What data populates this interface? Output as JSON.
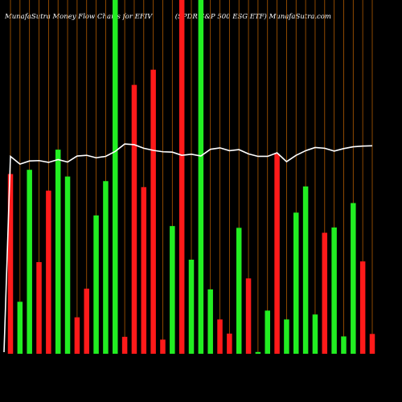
{
  "header": {
    "left": "MunafaSutra  Money Flow  Charts for EFIV",
    "right": "(SPDR S&P 500  ESG ETF) MunafaSutra.com"
  },
  "colors": {
    "background": "#000000",
    "up": "#22ee22",
    "down": "#ff1a1a",
    "grid": "#b05a00",
    "line": "#ffffff"
  },
  "chart_data": {
    "type": "bar",
    "grid": "vertical",
    "ylim": [
      0,
      1000
    ],
    "series": [
      {
        "name": "",
        "values": [
          508,
          147,
          520,
          259,
          461,
          577,
          501,
          103,
          184,
          391,
          488,
          1000,
          48,
          760,
          471,
          803,
          40,
          361,
          1000,
          266,
          1000,
          182,
          97,
          57,
          356,
          213,
          5,
          122,
          565,
          97,
          399,
          473,
          111,
          342,
          357,
          49,
          426,
          261,
          56
        ],
        "direction": [
          "down",
          "up",
          "up",
          "down",
          "down",
          "up",
          "up",
          "down",
          "down",
          "up",
          "up",
          "up",
          "down",
          "down",
          "down",
          "down",
          "down",
          "up",
          "down",
          "up",
          "up",
          "up",
          "down",
          "down",
          "up",
          "down",
          "up",
          "up",
          "down",
          "up",
          "up",
          "up",
          "up",
          "down",
          "up",
          "up",
          "up",
          "down",
          "down"
        ]
      },
      {
        "name": "",
        "type": "line",
        "values": [
          558,
          536,
          545,
          546,
          541,
          549,
          542,
          559,
          561,
          554,
          558,
          572,
          593,
          591,
          581,
          575,
          571,
          570,
          561,
          564,
          559,
          578,
          582,
          574,
          577,
          565,
          558,
          558,
          568,
          543,
          561,
          574,
          583,
          581,
          573,
          580,
          585,
          587,
          588
        ]
      }
    ]
  }
}
